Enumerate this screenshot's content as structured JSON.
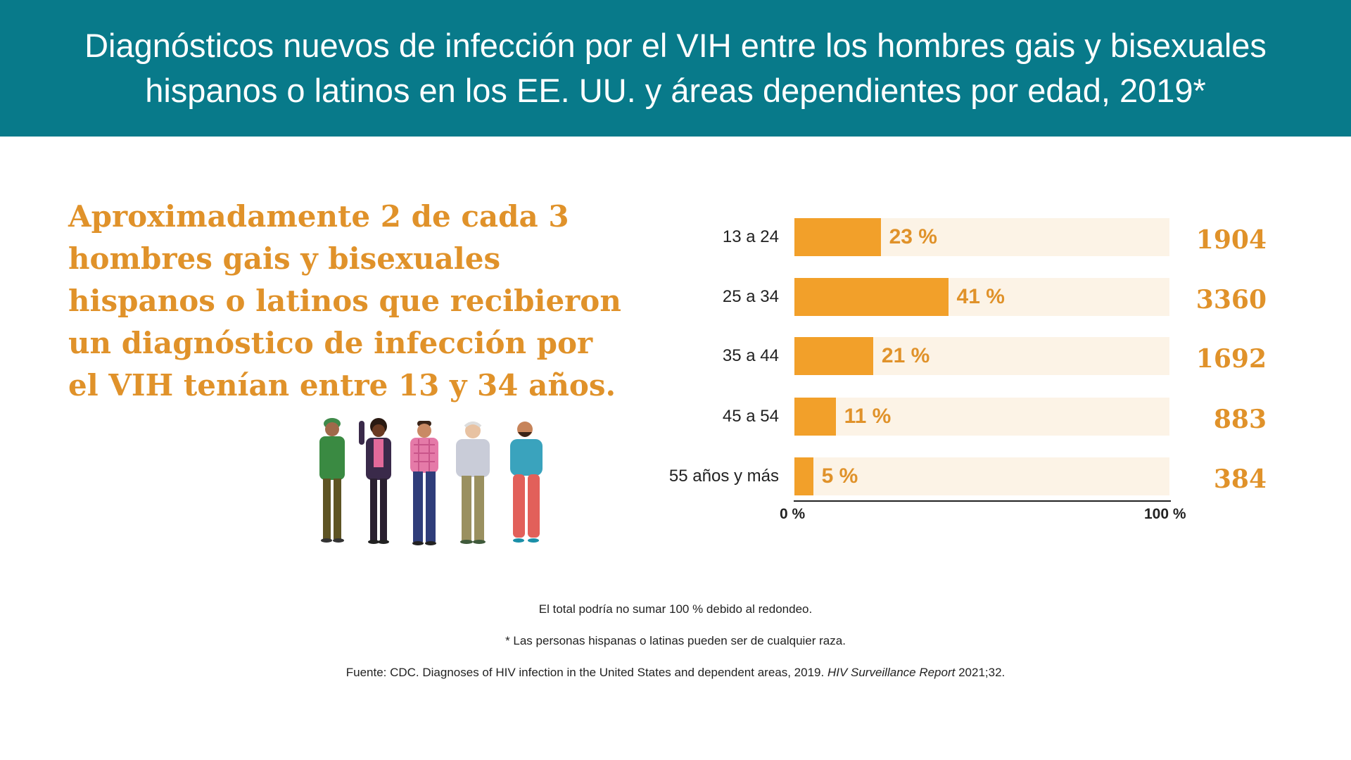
{
  "header": {
    "title_line1": "Diagnósticos nuevos de infección por el VIH entre los hombres gais y bisexuales",
    "title_line2": "hispanos o latinos en los EE. UU. y áreas dependientes por edad, 2019*"
  },
  "headline": {
    "lines": [
      "Aproximadamente 2 de cada 3",
      "hombres gais y bisexuales",
      "hispanos o latinos que recibieron",
      "un diagnóstico de infección por",
      "el VIH tenían entre 13 y 34 años."
    ]
  },
  "illustration": {
    "icon": "group-of-five-men-illustration"
  },
  "colors": {
    "header_bg": "#087a8a",
    "accent": "#f2a02a",
    "accent_text": "#e0922a",
    "track": "#fcf3e6"
  },
  "chart_data": {
    "type": "bar",
    "orientation": "horizontal",
    "categories": [
      "13 a 24",
      "25 a 34",
      "35 a 44",
      "45 a 54",
      "55 años y más"
    ],
    "values": [
      23,
      41,
      21,
      11,
      5
    ],
    "value_labels": [
      "23 %",
      "41 %",
      "21 %",
      "11 %",
      "5 %"
    ],
    "counts": [
      "1904",
      "3360",
      "1692",
      "883",
      "384"
    ],
    "xlim": [
      0,
      100
    ],
    "x_tick_labels": [
      "0 %",
      "100 %"
    ],
    "grid": false
  },
  "footnotes": {
    "rounding": "El total podría no sumar 100 % debido al redondeo.",
    "race": "* Las personas hispanas o latinas pueden ser de cualquier raza.",
    "source_prefix": "Fuente: CDC. Diagnoses of HIV infection in the United States and dependent areas, 2019. ",
    "source_journal": "HIV Surveillance Report",
    "source_suffix": " 2021;32."
  }
}
